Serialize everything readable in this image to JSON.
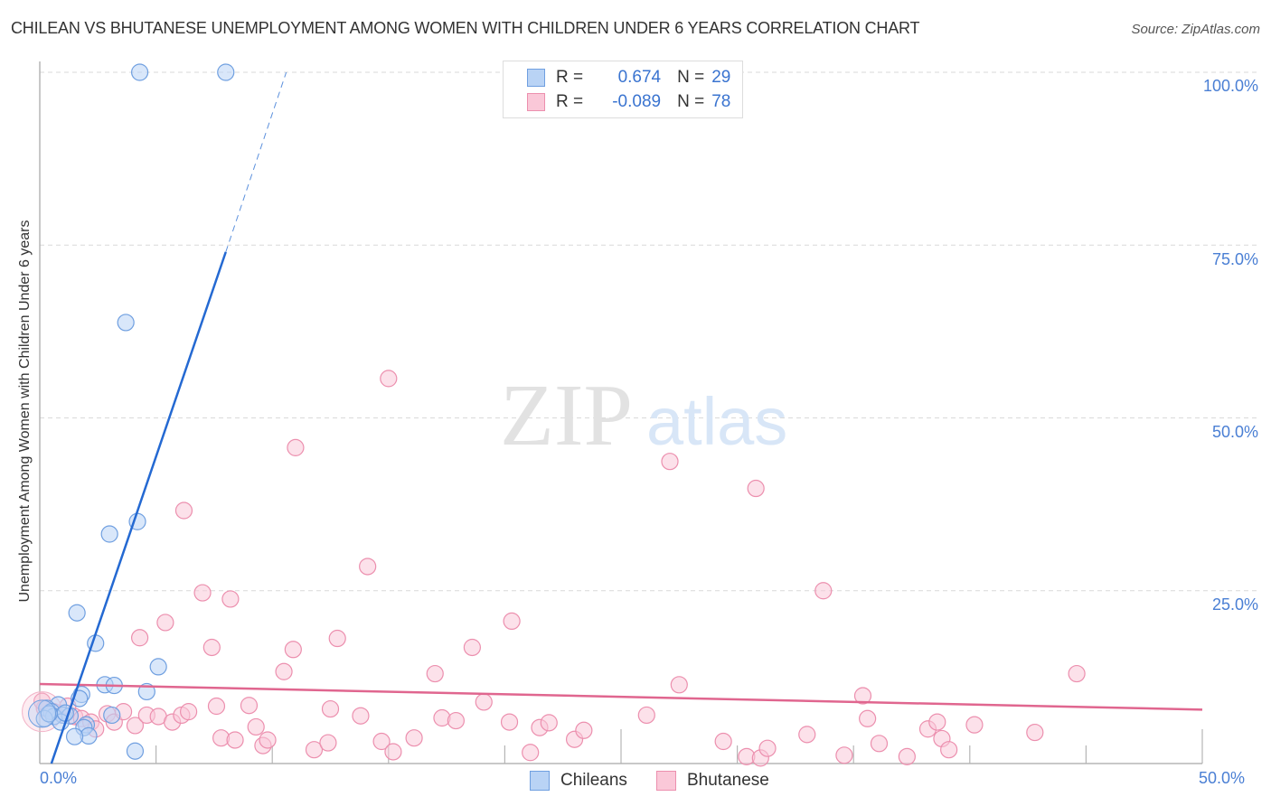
{
  "header": {
    "title": "CHILEAN VS BHUTANESE UNEMPLOYMENT AMONG WOMEN WITH CHILDREN UNDER 6 YEARS CORRELATION CHART",
    "source": "Source: ZipAtlas.com"
  },
  "watermark": {
    "zip": "ZIP",
    "atlas": "atlas"
  },
  "legend": {
    "r_label": "R =",
    "n_label": "N =",
    "series": [
      {
        "name": "Chileans",
        "r": "0.674",
        "n": "29",
        "fill": "#b9d3f5",
        "stroke": "#6f9fe0"
      },
      {
        "name": "Bhutanese",
        "r": "-0.089",
        "n": "78",
        "fill": "#fac8d8",
        "stroke": "#ec8fae"
      }
    ]
  },
  "axes": {
    "y_label": "Unemployment Among Women with Children Under 6 years",
    "y_ticks": [
      "100.0%",
      "75.0%",
      "50.0%",
      "25.0%"
    ],
    "x_ticks": [
      "0.0%",
      "50.0%"
    ]
  },
  "chart_data": {
    "type": "scatter",
    "title": "CHILEAN VS BHUTANESE UNEMPLOYMENT AMONG WOMEN WITH CHILDREN UNDER 6 YEARS CORRELATION CHART",
    "xlabel": "",
    "ylabel": "Unemployment Among Women with Children Under 6 years",
    "xlim": [
      0,
      50
    ],
    "ylim": [
      0,
      100
    ],
    "x_tick_labels": [
      "0.0%",
      "50.0%"
    ],
    "y_tick_labels": [
      "25.0%",
      "50.0%",
      "75.0%",
      "100.0%"
    ],
    "grid": true,
    "legend_position": "top-center / bottom",
    "series": [
      {
        "name": "Chileans",
        "color": "#6f9fe0",
        "R": 0.674,
        "N": 29,
        "trend": {
          "x0": 0.5,
          "y0": 0,
          "x1": 8.0,
          "y1": 74.0,
          "dash_to": [
            10.6,
            100
          ]
        },
        "points": [
          [
            4.3,
            100
          ],
          [
            8.0,
            100
          ],
          [
            3.7,
            63.8
          ],
          [
            4.2,
            35.0
          ],
          [
            3.0,
            33.2
          ],
          [
            1.6,
            21.8
          ],
          [
            2.4,
            17.4
          ],
          [
            5.1,
            14.0
          ],
          [
            2.8,
            11.4
          ],
          [
            3.2,
            11.3
          ],
          [
            4.6,
            10.4
          ],
          [
            1.8,
            10.0
          ],
          [
            1.7,
            9.4
          ],
          [
            0.8,
            8.5
          ],
          [
            0.3,
            8.0
          ],
          [
            0.5,
            7.5
          ],
          [
            1.0,
            7.0
          ],
          [
            0.6,
            6.8
          ],
          [
            0.2,
            6.5
          ],
          [
            1.3,
            6.9
          ],
          [
            0.9,
            6.0
          ],
          [
            1.1,
            7.3
          ],
          [
            0.4,
            7.2
          ],
          [
            3.1,
            7.0
          ],
          [
            2.0,
            5.6
          ],
          [
            1.9,
            5.2
          ],
          [
            2.1,
            4.0
          ],
          [
            1.5,
            3.9
          ],
          [
            4.1,
            1.8
          ]
        ]
      },
      {
        "name": "Bhutanese",
        "color": "#ec8fae",
        "R": -0.089,
        "N": 78,
        "trend": {
          "x0": 0,
          "y0": 11.5,
          "x1": 50,
          "y1": 7.8
        },
        "points": [
          [
            0.2,
            8.0
          ],
          [
            0.6,
            7.5
          ],
          [
            1.0,
            7.0
          ],
          [
            1.5,
            6.8
          ],
          [
            1.8,
            6.5
          ],
          [
            2.2,
            6.0
          ],
          [
            2.4,
            5.0
          ],
          [
            2.9,
            7.2
          ],
          [
            3.2,
            6.0
          ],
          [
            3.6,
            7.5
          ],
          [
            4.1,
            5.5
          ],
          [
            4.3,
            18.2
          ],
          [
            4.6,
            7.0
          ],
          [
            5.1,
            6.8
          ],
          [
            5.4,
            20.4
          ],
          [
            5.7,
            6.0
          ],
          [
            6.1,
            7.0
          ],
          [
            6.4,
            7.5
          ],
          [
            6.2,
            36.6
          ],
          [
            7.0,
            24.7
          ],
          [
            7.4,
            16.8
          ],
          [
            7.6,
            8.3
          ],
          [
            7.8,
            3.7
          ],
          [
            8.2,
            23.8
          ],
          [
            8.4,
            3.4
          ],
          [
            9.0,
            8.4
          ],
          [
            9.3,
            5.3
          ],
          [
            9.6,
            2.6
          ],
          [
            9.8,
            3.4
          ],
          [
            10.5,
            13.3
          ],
          [
            10.9,
            16.5
          ],
          [
            11.0,
            45.7
          ],
          [
            11.8,
            2.0
          ],
          [
            12.4,
            3.0
          ],
          [
            12.5,
            7.9
          ],
          [
            12.8,
            18.1
          ],
          [
            13.8,
            6.9
          ],
          [
            14.1,
            28.5
          ],
          [
            14.7,
            3.2
          ],
          [
            15.2,
            1.7
          ],
          [
            15.0,
            55.7
          ],
          [
            16.1,
            3.7
          ],
          [
            17.0,
            13.0
          ],
          [
            17.3,
            6.6
          ],
          [
            17.9,
            6.2
          ],
          [
            18.6,
            16.8
          ],
          [
            19.1,
            8.9
          ],
          [
            20.2,
            6.0
          ],
          [
            20.3,
            20.6
          ],
          [
            21.1,
            1.6
          ],
          [
            21.5,
            5.2
          ],
          [
            21.9,
            5.9
          ],
          [
            23.0,
            3.5
          ],
          [
            23.4,
            4.8
          ],
          [
            26.1,
            7.0
          ],
          [
            27.1,
            43.7
          ],
          [
            27.5,
            11.4
          ],
          [
            29.4,
            3.2
          ],
          [
            30.4,
            1.0
          ],
          [
            30.8,
            39.8
          ],
          [
            31.0,
            0.8
          ],
          [
            31.3,
            2.2
          ],
          [
            33.0,
            4.2
          ],
          [
            33.7,
            25.0
          ],
          [
            34.6,
            1.2
          ],
          [
            35.4,
            9.8
          ],
          [
            35.6,
            6.5
          ],
          [
            36.1,
            2.9
          ],
          [
            37.3,
            1.0
          ],
          [
            38.2,
            5.0
          ],
          [
            38.6,
            6.0
          ],
          [
            38.8,
            3.6
          ],
          [
            39.1,
            2.0
          ],
          [
            40.2,
            5.6
          ],
          [
            42.8,
            4.5
          ],
          [
            44.6,
            13.0
          ],
          [
            0.1,
            9.0
          ],
          [
            1.2,
            8.3
          ]
        ]
      }
    ]
  }
}
